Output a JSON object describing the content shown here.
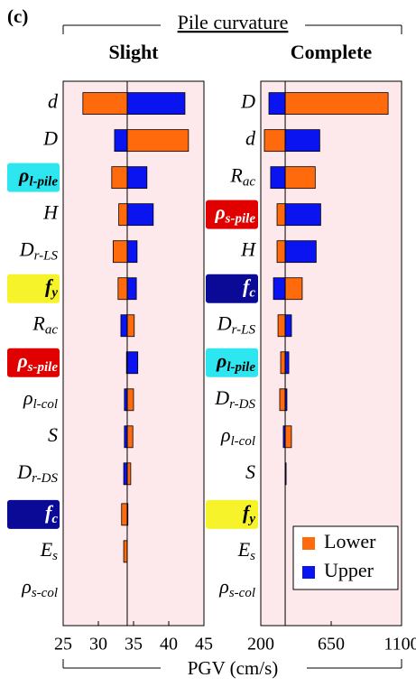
{
  "figure": {
    "panel_label": "(c)",
    "title": "Pile curvature",
    "xlabel": "PGV (cm/s)"
  },
  "chart_data": [
    {
      "type": "tornado",
      "title": "Slight",
      "xlim": [
        25,
        45
      ],
      "xticks": [
        25,
        30,
        35,
        40,
        45
      ],
      "baseline": 34.1,
      "categories": [
        {
          "main": "d"
        },
        {
          "main": "D"
        },
        {
          "main": "ρ",
          "sub": "l-pile",
          "highlight": "#2ee6f0",
          "label_color": "#000"
        },
        {
          "main": "H"
        },
        {
          "main": "D",
          "sub": "r-LS"
        },
        {
          "main": "f",
          "sub": "y",
          "highlight": "#f7f32a",
          "label_color": "#000"
        },
        {
          "main": "R",
          "sub": "ac"
        },
        {
          "main": "ρ",
          "sub": "s-pile",
          "highlight": "#e00000",
          "label_color": "#fff"
        },
        {
          "main": "ρ",
          "sub": "l-col"
        },
        {
          "main": "S"
        },
        {
          "main": "D",
          "sub": "r-DS"
        },
        {
          "main": "f",
          "sub": "c",
          "highlight": "#0a0a96",
          "label_color": "#fff"
        },
        {
          "main": "E",
          "sub": "s"
        },
        {
          "main": "ρ",
          "sub": "s-col"
        }
      ],
      "series": [
        {
          "name": "Lower",
          "color": "#ff6a0d",
          "values": [
            27.8,
            42.8,
            31.9,
            32.9,
            32.1,
            32.8,
            35.1,
            34.0,
            35.0,
            34.9,
            34.6,
            33.3,
            33.6,
            34.1
          ]
        },
        {
          "name": "Upper",
          "color": "#0a14f0",
          "values": [
            42.3,
            32.3,
            36.9,
            37.8,
            35.5,
            35.4,
            33.2,
            35.6,
            33.7,
            33.7,
            33.6,
            34.2,
            34.1,
            34.1
          ]
        }
      ]
    },
    {
      "type": "tornado",
      "title": "Complete",
      "xlim": [
        200,
        1100
      ],
      "xticks": [
        200,
        650,
        1100
      ],
      "baseline": 356,
      "legend": "lower right",
      "categories": [
        {
          "main": "D"
        },
        {
          "main": "d"
        },
        {
          "main": "R",
          "sub": "ac"
        },
        {
          "main": "ρ",
          "sub": "s-pile",
          "highlight": "#e00000",
          "label_color": "#fff"
        },
        {
          "main": "H"
        },
        {
          "main": "f",
          "sub": "c",
          "highlight": "#0a0a96",
          "label_color": "#fff"
        },
        {
          "main": "D",
          "sub": "r-LS"
        },
        {
          "main": "ρ",
          "sub": "l-pile",
          "highlight": "#2ee6f0",
          "label_color": "#000"
        },
        {
          "main": "D",
          "sub": "r-DS"
        },
        {
          "main": "ρ",
          "sub": "l-col"
        },
        {
          "main": "S"
        },
        {
          "main": "f",
          "sub": "y",
          "highlight": "#f7f32a",
          "label_color": "#000"
        },
        {
          "main": "E",
          "sub": "s"
        },
        {
          "main": "ρ",
          "sub": "s-col"
        }
      ],
      "series": [
        {
          "name": "Lower",
          "color": "#ff6a0d",
          "values": [
            1014,
            223,
            548,
            304,
            304,
            465,
            310,
            327,
            321,
            396,
            358,
            356,
            356,
            356
          ]
        },
        {
          "name": "Upper",
          "color": "#0a14f0",
          "values": [
            252,
            577,
            263,
            583,
            554,
            281,
            396,
            379,
            367,
            344,
            362,
            356,
            356,
            356
          ]
        }
      ]
    }
  ]
}
